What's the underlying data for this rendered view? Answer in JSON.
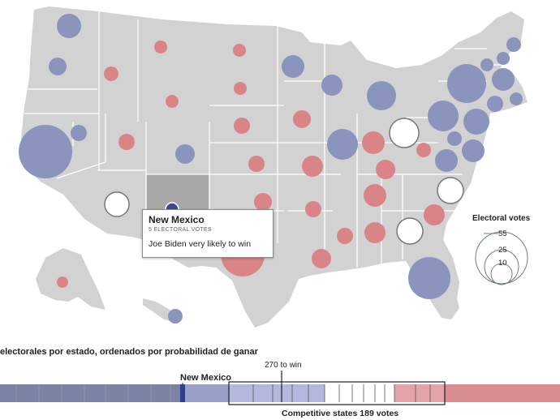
{
  "colors": {
    "land": "#d2d2d2",
    "border": "#ffffff",
    "dem": "#8a94bd",
    "rep": "#d98587",
    "tossup": "#ffffff",
    "highlight": "#a8a8a8",
    "nm_dot": "#3a4a92"
  },
  "tooltip": {
    "state": "New Mexico",
    "votes": "5 ELECTORAL VOTES",
    "prediction": "Joe Biden very likely to win"
  },
  "legend": {
    "title": "Electoral votes",
    "values": [
      "55",
      "25",
      "10"
    ]
  },
  "bar": {
    "title": "electorales por estado, ordenados por probabilidad de ganar",
    "win_label": "270 to win",
    "highlight_label": "New Mexico",
    "competitive_label": "Competitive states 189 votes"
  }
}
